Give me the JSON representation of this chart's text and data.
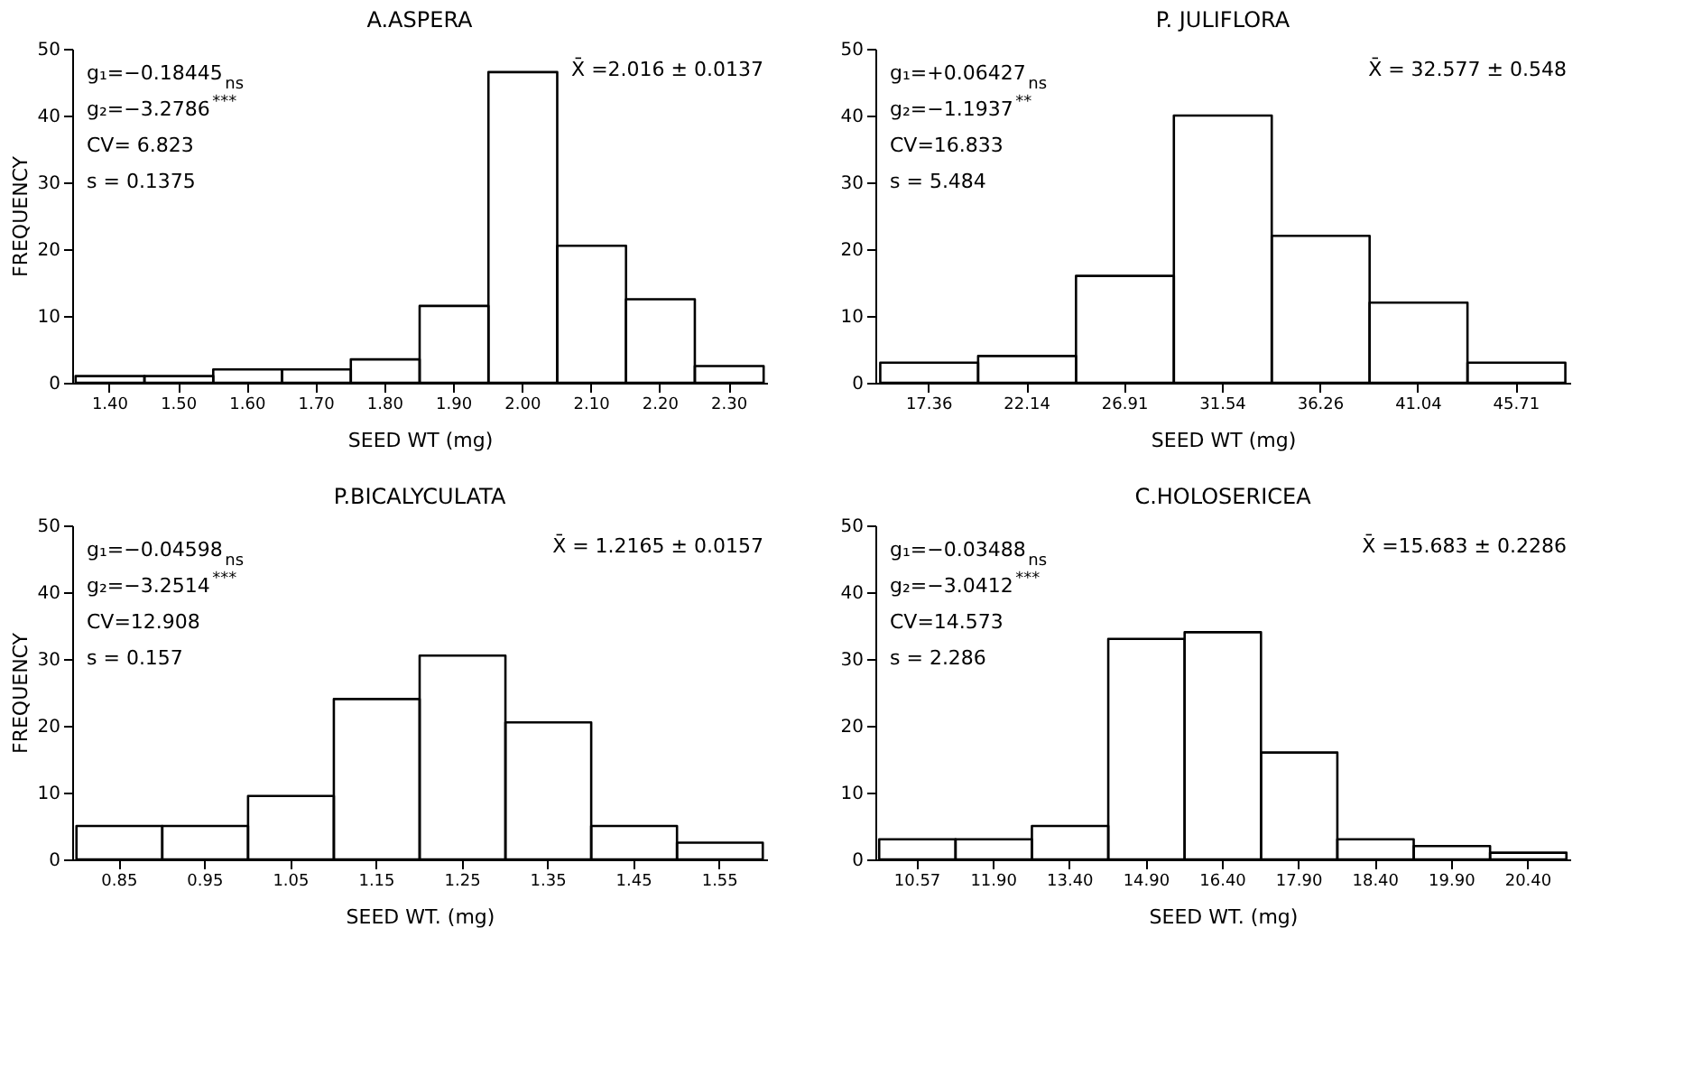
{
  "chart_data": [
    {
      "type": "bar",
      "title": "A.ASPERA",
      "xlabel": "SEED WT (mg)",
      "ylabel": "FREQUENCY",
      "categories": [
        "1.40",
        "1.50",
        "1.60",
        "1.70",
        "1.80",
        "1.90",
        "2.00",
        "2.10",
        "2.20",
        "2.30"
      ],
      "values": [
        1,
        1,
        2,
        2,
        3.5,
        11.5,
        46.5,
        20.5,
        12.5,
        2.5
      ],
      "color": "#000000",
      "ylim": [
        0,
        50
      ],
      "yticks": [
        0,
        10,
        20,
        30,
        40,
        50
      ],
      "grid": false,
      "annotations": [
        "g₁=−0.18445$_{ns}$",
        "g₂=−3.2786$^{***}$",
        "CV= 6.823",
        "s = 0.1375",
        "X̄ =2.016 ± 0.0137"
      ]
    },
    {
      "type": "bar",
      "title": "P. JULIFLORA",
      "xlabel": "SEED WT (mg)",
      "categories": [
        "17.36",
        "22.14",
        "26.91",
        "31.54",
        "36.26",
        "41.04",
        "45.71"
      ],
      "values": [
        3,
        4,
        16,
        40,
        22,
        12,
        3
      ],
      "color": "#000000",
      "ylim": [
        0,
        50
      ],
      "yticks": [
        0,
        10,
        20,
        30,
        40,
        50
      ],
      "grid": false,
      "annotations": [
        "g₁=+0.06427$_{ns}$",
        "g₂=−1.1937$^{**}$",
        "CV=16.833",
        "s = 5.484",
        "X̄ = 32.577 ± 0.548"
      ]
    },
    {
      "type": "bar",
      "title": "P.BICALYCULATA",
      "xlabel": "SEED WT. (mg)",
      "ylabel": "FREQUENCY",
      "categories": [
        "0.85",
        "0.95",
        "1.05",
        "1.15",
        "1.25",
        "1.35",
        "1.45",
        "1.55"
      ],
      "values": [
        5,
        5,
        9.5,
        24,
        30.5,
        20.5,
        5,
        2.5
      ],
      "color": "#000000",
      "ylim": [
        0,
        50
      ],
      "yticks": [
        0,
        10,
        20,
        30,
        40,
        50
      ],
      "grid": false,
      "annotations": [
        "g₁=−0.04598$_{ns}$",
        "g₂=−3.2514$^{***}$",
        "CV=12.908",
        "s = 0.157",
        "X̄ = 1.2165 ± 0.0157"
      ]
    },
    {
      "type": "bar",
      "title": "C.HOLOSERICEA",
      "xlabel": "SEED WT. (mg)",
      "categories": [
        "10.57",
        "11.90",
        "13.40",
        "14.90",
        "16.40",
        "17.90",
        "18.40",
        "19.90",
        "20.40"
      ],
      "values": [
        3,
        3,
        5,
        33,
        34,
        16,
        3,
        2,
        1
      ],
      "color": "#000000",
      "ylim": [
        0,
        50
      ],
      "yticks": [
        0,
        10,
        20,
        30,
        40,
        50
      ],
      "grid": false,
      "annotations": [
        "g₁=−0.03488$_{ns}$",
        "g₂=−3.0412$^{***}$",
        "CV=14.573",
        "s = 2.286",
        "X̄ =15.683 ± 0.2286"
      ]
    }
  ]
}
